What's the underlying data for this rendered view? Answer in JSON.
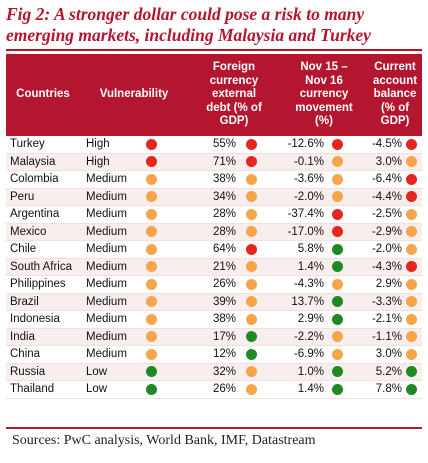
{
  "title_line1": "Fig 2: A stronger dollar could pose a risk to many",
  "title_line2": "emerging markets, including Malaysia and Turkey",
  "colors": {
    "brand": "#b3162e",
    "red": "#e4261f",
    "orange": "#f6a54a",
    "green": "#1f8a25"
  },
  "headers": {
    "country": "Countries",
    "vulnerability": "Vulnerability",
    "debt_l1": "Foreign",
    "debt_l2": "currency",
    "debt_l3": "external",
    "debt_l4": "debt (% of",
    "debt_l5": "GDP)",
    "fx_l1": "Nov 15 –",
    "fx_l2": "Nov 16",
    "fx_l3": "currency",
    "fx_l4": "movement",
    "fx_l5": "(%)",
    "cab_l1": "Current",
    "cab_l2": "account",
    "cab_l3": "balance",
    "cab_l4": "(% of GDP)"
  },
  "rows": [
    {
      "country": "Turkey",
      "vuln": "High",
      "vdot": "red",
      "debt": "55%",
      "ddot": "red",
      "fx": "-12.6%",
      "fdot": "red",
      "cab": "-4.5%",
      "cdot": "red"
    },
    {
      "country": "Malaysia",
      "vuln": "High",
      "vdot": "red",
      "debt": "71%",
      "ddot": "red",
      "fx": "-0.1%",
      "fdot": "orange",
      "cab": "3.0%",
      "cdot": "orange"
    },
    {
      "country": "Colombia",
      "vuln": "Medium",
      "vdot": "orange",
      "debt": "38%",
      "ddot": "orange",
      "fx": "-3.6%",
      "fdot": "orange",
      "cab": "-6.4%",
      "cdot": "red"
    },
    {
      "country": "Peru",
      "vuln": "Medium",
      "vdot": "orange",
      "debt": "34%",
      "ddot": "orange",
      "fx": "-2.0%",
      "fdot": "orange",
      "cab": "-4.4%",
      "cdot": "red"
    },
    {
      "country": "Argentina",
      "vuln": "Medium",
      "vdot": "orange",
      "debt": "28%",
      "ddot": "orange",
      "fx": "-37.4%",
      "fdot": "red",
      "cab": "-2.5%",
      "cdot": "orange"
    },
    {
      "country": "Mexico",
      "vuln": "Medium",
      "vdot": "orange",
      "debt": "28%",
      "ddot": "orange",
      "fx": "-17.0%",
      "fdot": "red",
      "cab": "-2.9%",
      "cdot": "orange"
    },
    {
      "country": "Chile",
      "vuln": "Medium",
      "vdot": "orange",
      "debt": "64%",
      "ddot": "red",
      "fx": "5.8%",
      "fdot": "green",
      "cab": "-2.0%",
      "cdot": "orange"
    },
    {
      "country": "South Africa",
      "vuln": "Medium",
      "vdot": "orange",
      "debt": "21%",
      "ddot": "orange",
      "fx": "1.4%",
      "fdot": "green",
      "cab": "-4.3%",
      "cdot": "red"
    },
    {
      "country": "Philippines",
      "vuln": "Medium",
      "vdot": "orange",
      "debt": "26%",
      "ddot": "orange",
      "fx": "-4.3%",
      "fdot": "orange",
      "cab": "2.9%",
      "cdot": "orange"
    },
    {
      "country": "Brazil",
      "vuln": "Medium",
      "vdot": "orange",
      "debt": "39%",
      "ddot": "orange",
      "fx": "13.7%",
      "fdot": "green",
      "cab": "-3.3%",
      "cdot": "orange"
    },
    {
      "country": "Indonesia",
      "vuln": "Medium",
      "vdot": "orange",
      "debt": "38%",
      "ddot": "orange",
      "fx": "2.9%",
      "fdot": "green",
      "cab": "-2.1%",
      "cdot": "orange"
    },
    {
      "country": "India",
      "vuln": "Medium",
      "vdot": "orange",
      "debt": "17%",
      "ddot": "green",
      "fx": "-2.2%",
      "fdot": "orange",
      "cab": "-1.1%",
      "cdot": "orange"
    },
    {
      "country": "China",
      "vuln": "Medium",
      "vdot": "orange",
      "debt": "12%",
      "ddot": "green",
      "fx": "-6.9%",
      "fdot": "orange",
      "cab": "3.0%",
      "cdot": "orange"
    },
    {
      "country": "Russia",
      "vuln": "Low",
      "vdot": "green",
      "debt": "32%",
      "ddot": "orange",
      "fx": "1.0%",
      "fdot": "green",
      "cab": "5.2%",
      "cdot": "green"
    },
    {
      "country": "Thailand",
      "vuln": "Low",
      "vdot": "green",
      "debt": "26%",
      "ddot": "orange",
      "fx": "1.4%",
      "fdot": "green",
      "cab": "7.8%",
      "cdot": "green"
    }
  ],
  "sources": "Sources: PwC analysis, World Bank, IMF, Datastream"
}
